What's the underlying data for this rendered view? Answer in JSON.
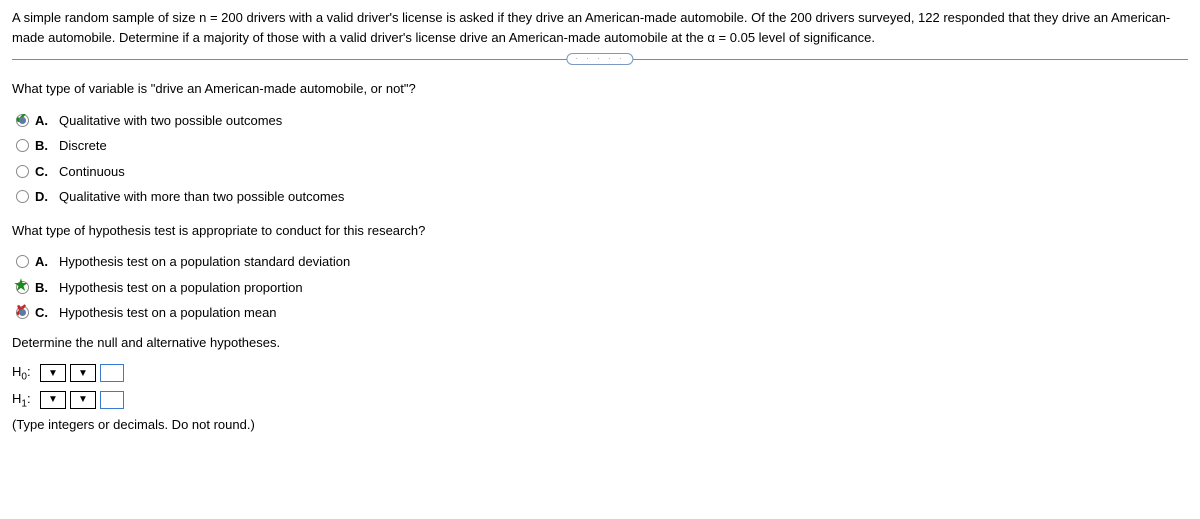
{
  "problem": "A simple random sample of size n = 200 drivers with a valid driver's license is asked if they drive an American-made automobile. Of the 200 drivers surveyed, 122 responded that they drive an American-made automobile. Determine if a majority of those with a valid driver's license drive an American-made automobile at the α = 0.05 level of significance.",
  "divider_dots": "· · · · ·",
  "q1": {
    "text": "What type of variable is \"drive an American-made automobile, or not\"?",
    "options": {
      "a": {
        "letter": "A.",
        "label": "Qualitative with two possible outcomes"
      },
      "b": {
        "letter": "B.",
        "label": "Discrete"
      },
      "c": {
        "letter": "C.",
        "label": "Continuous"
      },
      "d": {
        "letter": "D.",
        "label": "Qualitative with more than two possible outcomes"
      }
    }
  },
  "q2": {
    "text": "What type of hypothesis test is appropriate to conduct for this research?",
    "options": {
      "a": {
        "letter": "A.",
        "label": "Hypothesis test on a population standard deviation"
      },
      "b": {
        "letter": "B.",
        "label": "Hypothesis test on a population proportion"
      },
      "c": {
        "letter": "C.",
        "label": "Hypothesis test on a population mean"
      }
    }
  },
  "hyp": {
    "heading": "Determine the null and alternative hypotheses.",
    "h0_label": "H",
    "h0_sub": "0",
    "h1_label": "H",
    "h1_sub": "1",
    "colon": ":",
    "arrow": "▼",
    "hint": "(Type integers or decimals. Do not round.)"
  }
}
